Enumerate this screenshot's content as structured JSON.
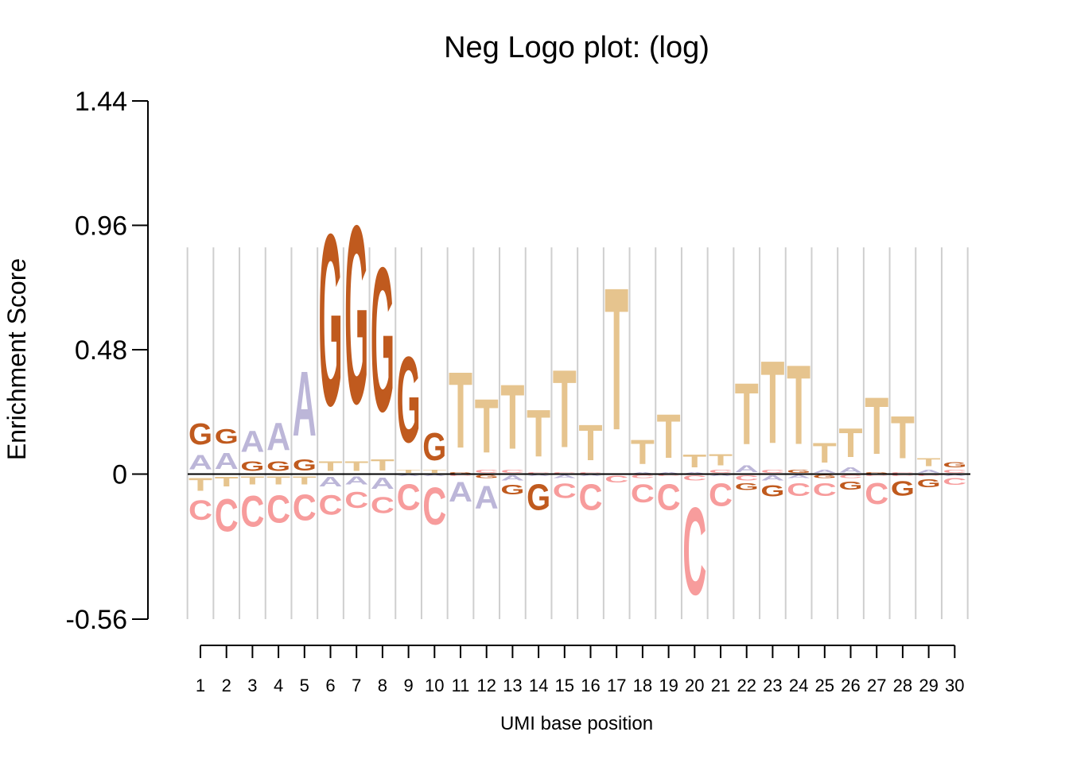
{
  "chart_data": {
    "type": "sequence-logo",
    "title": "Neg Logo plot: (log)",
    "xlabel": "UMI base position",
    "ylabel": "Enrichment Score",
    "yticks": [
      1.44,
      0.96,
      0.48,
      0,
      -0.56
    ],
    "ytick_labels": [
      "1.44",
      "0.96",
      "0.48",
      "0",
      "-0.56"
    ],
    "ylim": [
      -0.56,
      1.44
    ],
    "grid": "vertical",
    "positions": [
      "1",
      "2",
      "3",
      "4",
      "5",
      "6",
      "7",
      "8",
      "9",
      "10",
      "11",
      "12",
      "13",
      "14",
      "15",
      "16",
      "17",
      "18",
      "19",
      "20",
      "21",
      "22",
      "23",
      "24",
      "25",
      "26",
      "27",
      "28",
      "29",
      "30"
    ],
    "colors": {
      "A": "#BCB6D8",
      "C": "#F79C9C",
      "G": "#C05A1E",
      "T": "#E6C48E"
    },
    "columns": [
      {
        "pos": 1,
        "up": [
          [
            "A",
            0.09
          ],
          [
            "G",
            0.13
          ]
        ],
        "down": [
          [
            "T",
            0.08
          ],
          [
            "C",
            0.12
          ]
        ]
      },
      {
        "pos": 2,
        "up": [
          [
            "A",
            0.1
          ],
          [
            "G",
            0.09
          ]
        ],
        "down": [
          [
            "T",
            0.06
          ],
          [
            "C",
            0.2
          ]
        ]
      },
      {
        "pos": 3,
        "up": [
          [
            "G",
            0.06
          ],
          [
            "A",
            0.13
          ]
        ],
        "down": [
          [
            "T",
            0.05
          ],
          [
            "C",
            0.19
          ]
        ]
      },
      {
        "pos": 4,
        "up": [
          [
            "G",
            0.06
          ],
          [
            "A",
            0.17
          ]
        ],
        "down": [
          [
            "T",
            0.05
          ],
          [
            "C",
            0.17
          ]
        ]
      },
      {
        "pos": 5,
        "up": [
          [
            "G",
            0.07
          ],
          [
            "A",
            0.4
          ]
        ],
        "down": [
          [
            "T",
            0.05
          ],
          [
            "C",
            0.16
          ]
        ]
      },
      {
        "pos": 6,
        "up": [
          [
            "T",
            0.06
          ],
          [
            "G",
            1.06
          ]
        ],
        "down": [
          [
            "A",
            0.06
          ],
          [
            "C",
            0.12
          ]
        ]
      },
      {
        "pos": 7,
        "up": [
          [
            "T",
            0.06
          ],
          [
            "G",
            1.1
          ]
        ],
        "down": [
          [
            "A",
            0.05
          ],
          [
            "C",
            0.1
          ]
        ]
      },
      {
        "pos": 8,
        "up": [
          [
            "T",
            0.07
          ],
          [
            "G",
            0.89
          ]
        ],
        "down": [
          [
            "A",
            0.07
          ],
          [
            "C",
            0.1
          ]
        ]
      },
      {
        "pos": 9,
        "up": [
          [
            "T",
            0.02
          ],
          [
            "G",
            0.53
          ]
        ],
        "down": [
          [
            "A",
            0.01
          ],
          [
            "C",
            0.16
          ]
        ]
      },
      {
        "pos": 10,
        "up": [
          [
            "T",
            0.02
          ],
          [
            "G",
            0.17
          ]
        ],
        "down": [
          [
            "A",
            0.01
          ],
          [
            "C",
            0.23
          ]
        ]
      },
      {
        "pos": 11,
        "up": [
          [
            "G",
            0.01
          ],
          [
            "T",
            0.47
          ]
        ],
        "down": [
          [
            "C",
            0.01
          ],
          [
            "A",
            0.12
          ]
        ]
      },
      {
        "pos": 12,
        "up": [
          [
            "C",
            0.02
          ],
          [
            "T",
            0.33
          ]
        ],
        "down": [
          [
            "G",
            0.02
          ],
          [
            "A",
            0.14
          ]
        ]
      },
      {
        "pos": 13,
        "up": [
          [
            "C",
            0.02
          ],
          [
            "T",
            0.4
          ]
        ],
        "down": [
          [
            "A",
            0.03
          ],
          [
            "G",
            0.06
          ]
        ]
      },
      {
        "pos": 14,
        "up": [
          [
            "C",
            0.01
          ],
          [
            "T",
            0.29
          ]
        ],
        "down": [
          [
            "A",
            0.01
          ],
          [
            "G",
            0.16
          ]
        ]
      },
      {
        "pos": 15,
        "up": [
          [
            "C",
            0.01
          ],
          [
            "T",
            0.48
          ]
        ],
        "down": [
          [
            "A",
            0.02
          ],
          [
            "C",
            0.09
          ]
        ]
      },
      {
        "pos": 16,
        "up": [
          [
            "C",
            0.01
          ],
          [
            "T",
            0.22
          ]
        ],
        "down": [
          [
            "A",
            0.01
          ],
          [
            "C",
            0.16
          ]
        ]
      },
      {
        "pos": 17,
        "up": [
          [
            "T",
            0.88
          ]
        ],
        "down": [
          [
            "C",
            0.04
          ]
        ]
      },
      {
        "pos": 18,
        "up": [
          [
            "A",
            0.01
          ],
          [
            "T",
            0.15
          ]
        ],
        "down": [
          [
            "C",
            0.02
          ],
          [
            "C",
            0.11
          ]
        ]
      },
      {
        "pos": 19,
        "up": [
          [
            "A",
            0.01
          ],
          [
            "T",
            0.27
          ]
        ],
        "down": [
          [
            "C",
            0.01
          ],
          [
            "C",
            0.16
          ]
        ]
      },
      {
        "pos": 20,
        "up": [
          [
            "A",
            0.01
          ],
          [
            "T",
            0.08
          ]
        ],
        "down": [
          [
            "C",
            0.03
          ],
          [
            "C",
            0.54
          ]
        ]
      },
      {
        "pos": 21,
        "up": [
          [
            "C",
            0.02
          ],
          [
            "T",
            0.07
          ]
        ],
        "down": [
          [
            "A",
            0.01
          ],
          [
            "C",
            0.14
          ]
        ]
      },
      {
        "pos": 22,
        "up": [
          [
            "A",
            0.04
          ],
          [
            "T",
            0.38
          ]
        ],
        "down": [
          [
            "C",
            0.03
          ],
          [
            "G",
            0.04
          ]
        ]
      },
      {
        "pos": 23,
        "up": [
          [
            "C",
            0.02
          ],
          [
            "T",
            0.51
          ]
        ],
        "down": [
          [
            "A",
            0.03
          ],
          [
            "G",
            0.07
          ]
        ]
      },
      {
        "pos": 24,
        "up": [
          [
            "G",
            0.02
          ],
          [
            "T",
            0.49
          ]
        ],
        "down": [
          [
            "A",
            0.02
          ],
          [
            "C",
            0.08
          ]
        ]
      },
      {
        "pos": 25,
        "up": [
          [
            "A",
            0.02
          ],
          [
            "T",
            0.12
          ]
        ],
        "down": [
          [
            "G",
            0.02
          ],
          [
            "C",
            0.08
          ]
        ]
      },
      {
        "pos": 26,
        "up": [
          [
            "A",
            0.03
          ],
          [
            "T",
            0.18
          ]
        ],
        "down": [
          [
            "C",
            0.02
          ],
          [
            "G",
            0.05
          ]
        ]
      },
      {
        "pos": 27,
        "up": [
          [
            "G",
            0.01
          ],
          [
            "T",
            0.35
          ]
        ],
        "down": [
          [
            "C",
            0.01
          ],
          [
            "C",
            0.13
          ]
        ]
      },
      {
        "pos": 28,
        "up": [
          [
            "C",
            0.01
          ],
          [
            "T",
            0.26
          ]
        ],
        "down": [
          [
            "C",
            0.01
          ],
          [
            "G",
            0.09
          ]
        ]
      },
      {
        "pos": 29,
        "up": [
          [
            "A",
            0.02
          ],
          [
            "T",
            0.05
          ]
        ],
        "down": [
          [
            "C",
            0.01
          ],
          [
            "G",
            0.05
          ]
        ]
      },
      {
        "pos": 30,
        "up": [
          [
            "C",
            0.02
          ],
          [
            "G",
            0.03
          ]
        ],
        "down": [
          [
            "A",
            0.01
          ],
          [
            "C",
            0.04
          ]
        ]
      }
    ]
  }
}
